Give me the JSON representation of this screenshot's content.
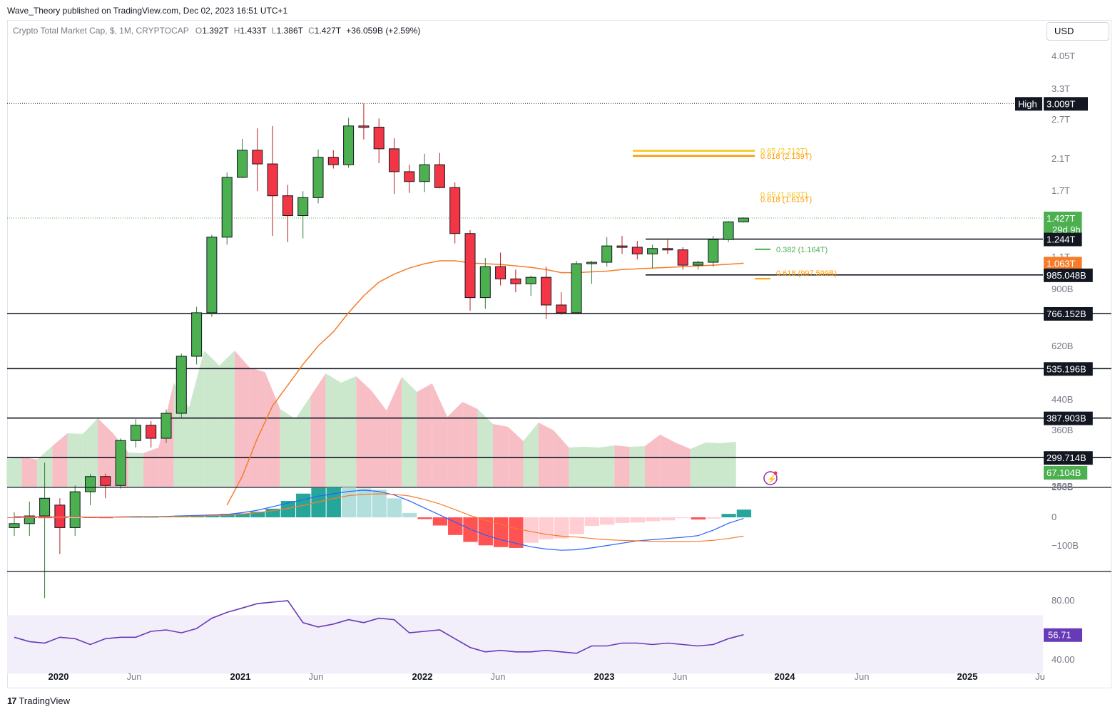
{
  "header": {
    "publisher": "Wave_Theory published on TradingView.com, Dec 02, 2023 16:51 UTC+1",
    "symbol": "Crypto Total Market Cap, $, 1M, CRYPTOCAP",
    "o_label": "O",
    "o_value": "1.392T",
    "h_label": "H",
    "h_value": "1.433T",
    "l_label": "L",
    "l_value": "1.386T",
    "c_label": "C",
    "c_value": "1.427T",
    "change": "+36.059B (+2.59%)",
    "currency": "USD"
  },
  "footer": {
    "brand": "TradingView"
  },
  "colors": {
    "up": "#4caf50",
    "down": "#f23645",
    "ema": "#f57c2a",
    "macd": "#2962ff",
    "rsi": "#673ab7",
    "fib_yellow": "#f5c518",
    "fib_orange": "#ff9800",
    "vol_up": "#c8e6c9",
    "vol_down": "#f8bbc3"
  },
  "chart_data": {
    "type": "candlestick",
    "title": "Crypto Total Market Cap, $, 1M, CRYPTOCAP",
    "y_scale": "log",
    "x_ticks": [
      "2020",
      "Jun",
      "2021",
      "Jun",
      "2022",
      "Jun",
      "2023",
      "Jun",
      "2024",
      "Jun",
      "2025",
      "Ju"
    ],
    "price_axis_ticks": [
      "4.05T",
      "3.3T",
      "2.7T",
      "2.1T",
      "1.7T",
      "1.1T",
      "900B",
      "620B",
      "440B",
      "360B",
      "252B"
    ],
    "price_labels": [
      {
        "text": "High",
        "value": "3.009T",
        "style": "dark"
      },
      {
        "text": "1.427T",
        "sub": "29d 9h",
        "style": "green"
      },
      {
        "text": "1.244T",
        "style": "dark"
      },
      {
        "text": "1.063T",
        "style": "orange"
      },
      {
        "text": "985.048B",
        "style": "dark"
      },
      {
        "text": "766.152B",
        "style": "dark"
      },
      {
        "text": "535.196B",
        "style": "dark"
      },
      {
        "text": "387.903B",
        "style": "dark"
      },
      {
        "text": "299.714B",
        "style": "dark"
      },
      {
        "text": "67.104B",
        "style": "green"
      }
    ],
    "horizontal_levels": [
      3.009,
      1.244,
      0.985048,
      0.766152,
      0.535196,
      0.387903,
      0.299714
    ],
    "fib_annotations": [
      {
        "label": "0.65 (2.212T)",
        "value": 2.212,
        "color": "#f5c518"
      },
      {
        "label": "0.618 (2.139T)",
        "value": 2.139,
        "color": "#ff9800"
      },
      {
        "label": "0.65 (1.663T)",
        "value": 1.663,
        "color": "#f5c518"
      },
      {
        "label": "0.618 (1.615T)",
        "value": 1.615,
        "color": "#ff9800"
      },
      {
        "label": "0.382 (1.164T)",
        "value": 1.164,
        "color": "#4caf50"
      },
      {
        "label": "0.618 (997.599B)",
        "value": 0.9976,
        "color": "#ff9800"
      }
    ],
    "candles": [
      {
        "o": 0.19,
        "h": 0.21,
        "l": 0.18,
        "c": 0.195
      },
      {
        "o": 0.195,
        "h": 0.225,
        "l": 0.18,
        "c": 0.205
      },
      {
        "o": 0.205,
        "h": 0.29,
        "l": 0.12,
        "c": 0.23
      },
      {
        "o": 0.22,
        "h": 0.23,
        "l": 0.16,
        "c": 0.19
      },
      {
        "o": 0.19,
        "h": 0.25,
        "l": 0.18,
        "c": 0.24
      },
      {
        "o": 0.24,
        "h": 0.27,
        "l": 0.22,
        "c": 0.265
      },
      {
        "o": 0.265,
        "h": 0.27,
        "l": 0.23,
        "c": 0.25
      },
      {
        "o": 0.25,
        "h": 0.34,
        "l": 0.245,
        "c": 0.335
      },
      {
        "o": 0.335,
        "h": 0.385,
        "l": 0.32,
        "c": 0.37
      },
      {
        "o": 0.37,
        "h": 0.38,
        "l": 0.32,
        "c": 0.34
      },
      {
        "o": 0.34,
        "h": 0.41,
        "l": 0.33,
        "c": 0.4
      },
      {
        "o": 0.4,
        "h": 0.59,
        "l": 0.39,
        "c": 0.58
      },
      {
        "o": 0.58,
        "h": 0.8,
        "l": 0.55,
        "c": 0.77
      },
      {
        "o": 0.77,
        "h": 1.28,
        "l": 0.75,
        "c": 1.26
      },
      {
        "o": 1.26,
        "h": 1.92,
        "l": 1.2,
        "c": 1.86
      },
      {
        "o": 1.86,
        "h": 2.39,
        "l": 1.85,
        "c": 2.22
      },
      {
        "o": 2.22,
        "h": 2.56,
        "l": 1.7,
        "c": 2.03
      },
      {
        "o": 2.03,
        "h": 2.6,
        "l": 1.27,
        "c": 1.65
      },
      {
        "o": 1.65,
        "h": 1.77,
        "l": 1.22,
        "c": 1.45
      },
      {
        "o": 1.45,
        "h": 1.7,
        "l": 1.25,
        "c": 1.63
      },
      {
        "o": 1.63,
        "h": 2.23,
        "l": 1.57,
        "c": 2.12
      },
      {
        "o": 2.12,
        "h": 2.22,
        "l": 1.97,
        "c": 2.02
      },
      {
        "o": 2.02,
        "h": 2.74,
        "l": 1.98,
        "c": 2.6
      },
      {
        "o": 2.6,
        "h": 3.009,
        "l": 2.38,
        "c": 2.58
      },
      {
        "o": 2.58,
        "h": 2.73,
        "l": 2.04,
        "c": 2.24
      },
      {
        "o": 2.24,
        "h": 2.4,
        "l": 1.67,
        "c": 1.93
      },
      {
        "o": 1.93,
        "h": 2.02,
        "l": 1.68,
        "c": 1.81
      },
      {
        "o": 1.81,
        "h": 2.17,
        "l": 1.69,
        "c": 2.02
      },
      {
        "o": 2.02,
        "h": 2.18,
        "l": 1.73,
        "c": 1.74
      },
      {
        "o": 1.74,
        "h": 1.8,
        "l": 1.21,
        "c": 1.29
      },
      {
        "o": 1.29,
        "h": 1.32,
        "l": 0.78,
        "c": 0.85
      },
      {
        "o": 0.85,
        "h": 1.1,
        "l": 0.79,
        "c": 1.04
      },
      {
        "o": 1.04,
        "h": 1.14,
        "l": 0.92,
        "c": 0.96
      },
      {
        "o": 0.96,
        "h": 1.02,
        "l": 0.88,
        "c": 0.93
      },
      {
        "o": 0.93,
        "h": 0.98,
        "l": 0.86,
        "c": 0.97
      },
      {
        "o": 0.97,
        "h": 1.04,
        "l": 0.74,
        "c": 0.81
      },
      {
        "o": 0.81,
        "h": 0.88,
        "l": 0.76,
        "c": 0.77
      },
      {
        "o": 0.77,
        "h": 1.08,
        "l": 0.77,
        "c": 1.06
      },
      {
        "o": 1.06,
        "h": 1.08,
        "l": 0.93,
        "c": 1.07
      },
      {
        "o": 1.07,
        "h": 1.26,
        "l": 1.04,
        "c": 1.19
      },
      {
        "o": 1.19,
        "h": 1.27,
        "l": 1.13,
        "c": 1.18
      },
      {
        "o": 1.18,
        "h": 1.23,
        "l": 1.09,
        "c": 1.13
      },
      {
        "o": 1.13,
        "h": 1.2,
        "l": 1.03,
        "c": 1.17
      },
      {
        "o": 1.17,
        "h": 1.25,
        "l": 1.13,
        "c": 1.16
      },
      {
        "o": 1.16,
        "h": 1.18,
        "l": 1.02,
        "c": 1.05
      },
      {
        "o": 1.05,
        "h": 1.08,
        "l": 1.02,
        "c": 1.07
      },
      {
        "o": 1.07,
        "h": 1.27,
        "l": 1.04,
        "c": 1.24
      },
      {
        "o": 1.24,
        "h": 1.4,
        "l": 1.22,
        "c": 1.392
      },
      {
        "o": 1.392,
        "h": 1.433,
        "l": 1.386,
        "c": 1.427
      }
    ],
    "ema": [
      null,
      null,
      null,
      null,
      null,
      null,
      null,
      null,
      null,
      null,
      null,
      null,
      null,
      null,
      0.22,
      0.265,
      0.34,
      0.42,
      0.48,
      0.55,
      0.62,
      0.68,
      0.77,
      0.86,
      0.94,
      0.99,
      1.03,
      1.06,
      1.08,
      1.08,
      1.065,
      1.06,
      1.055,
      1.045,
      1.035,
      1.02,
      1.0,
      1.0,
      1.005,
      1.01,
      1.02,
      1.025,
      1.03,
      1.035,
      1.04,
      1.045,
      1.05,
      1.056,
      1.063
    ],
    "volume": [
      {
        "v": 39,
        "up": true
      },
      {
        "v": 42,
        "up": false
      },
      {
        "v": 38,
        "up": true
      },
      {
        "v": 57,
        "up": false
      },
      {
        "v": 75,
        "up": true
      },
      {
        "v": 74,
        "up": true
      },
      {
        "v": 96,
        "up": false
      },
      {
        "v": 75,
        "up": false
      },
      {
        "v": 48,
        "up": true
      },
      {
        "v": 47,
        "up": false
      },
      {
        "v": 55,
        "up": false
      },
      {
        "v": 146,
        "up": true
      },
      {
        "v": 111,
        "up": true
      },
      {
        "v": 191,
        "up": true
      },
      {
        "v": 170,
        "up": true
      },
      {
        "v": 191,
        "up": false
      },
      {
        "v": 167,
        "up": false
      },
      {
        "v": 161,
        "up": false
      },
      {
        "v": 109,
        "up": true
      },
      {
        "v": 95,
        "up": true
      },
      {
        "v": 127,
        "up": false
      },
      {
        "v": 159,
        "up": true
      },
      {
        "v": 146,
        "up": true
      },
      {
        "v": 155,
        "up": false
      },
      {
        "v": 135,
        "up": false
      },
      {
        "v": 107,
        "up": false
      },
      {
        "v": 154,
        "up": true
      },
      {
        "v": 133,
        "up": false
      },
      {
        "v": 145,
        "up": false
      },
      {
        "v": 98,
        "up": false
      },
      {
        "v": 119,
        "up": false
      },
      {
        "v": 109,
        "up": true
      },
      {
        "v": 88,
        "up": false
      },
      {
        "v": 84,
        "up": false
      },
      {
        "v": 64,
        "up": true
      },
      {
        "v": 90,
        "up": false
      },
      {
        "v": 79,
        "up": false
      },
      {
        "v": 55,
        "up": true
      },
      {
        "v": 56,
        "up": true
      },
      {
        "v": 55,
        "up": true
      },
      {
        "v": 58,
        "up": false
      },
      {
        "v": 56,
        "up": true
      },
      {
        "v": 57,
        "up": false
      },
      {
        "v": 73,
        "up": false
      },
      {
        "v": 62,
        "up": false
      },
      {
        "v": 53,
        "up": true
      },
      {
        "v": 62,
        "up": true
      },
      {
        "v": 61,
        "up": true
      },
      {
        "v": 63,
        "up": true
      }
    ],
    "volume_axis_ticks": [
      "100B",
      "0",
      "-100B"
    ],
    "macd": {
      "axis_ticks": [
        "100B",
        "0",
        "−100B"
      ],
      "hist": [
        -1,
        -1,
        -2,
        -2,
        -1,
        -1,
        -2,
        -1,
        1,
        1,
        2,
        4,
        5,
        6,
        8,
        9,
        13,
        20,
        38,
        55,
        68,
        77,
        74,
        67,
        64,
        44,
        10,
        -4,
        -19,
        -41,
        -57,
        -65,
        -69,
        -71,
        -59,
        -51,
        -49,
        -39,
        -20,
        -17,
        -13,
        -12,
        -9,
        -7,
        -2,
        -5,
        -3,
        8,
        18
      ],
      "macd_line": [
        3,
        3,
        2,
        2,
        2,
        1,
        1,
        2,
        3,
        3,
        4,
        6,
        8,
        10,
        12,
        20,
        30,
        45,
        60,
        75,
        90,
        100,
        110,
        115,
        110,
        95,
        70,
        40,
        10,
        -20,
        -50,
        -75,
        -95,
        -110,
        -125,
        -135,
        -140,
        -138,
        -130,
        -120,
        -110,
        -100,
        -95,
        -90,
        -85,
        -78,
        -55,
        -25,
        -5
      ],
      "signal_line": [
        2,
        2,
        2,
        2,
        1,
        1,
        1,
        1,
        2,
        2,
        3,
        4,
        5,
        7,
        9,
        14,
        20,
        28,
        38,
        50,
        65,
        80,
        92,
        98,
        100,
        98,
        91,
        76,
        57,
        33,
        8,
        -12,
        -30,
        -48,
        -60,
        -72,
        -80,
        -84,
        -90,
        -95,
        -98,
        -100,
        -102,
        -103,
        -103,
        -102,
        -98,
        -90,
        -80
      ]
    },
    "rsi": {
      "values": [
        55,
        52,
        51,
        55,
        54,
        50,
        54,
        55,
        55,
        59,
        60,
        58,
        61,
        68,
        72,
        75,
        78,
        79,
        80,
        65,
        62,
        64,
        67,
        65,
        68,
        67,
        58,
        59,
        60,
        54,
        48,
        45,
        46,
        45,
        45,
        46,
        45,
        44,
        49,
        49,
        51,
        51,
        50,
        51,
        50,
        49,
        50,
        54,
        56.71
      ],
      "current_label": "56.71",
      "axis_ticks": [
        "80.00",
        "40.00"
      ],
      "band": [
        30,
        70
      ]
    }
  }
}
